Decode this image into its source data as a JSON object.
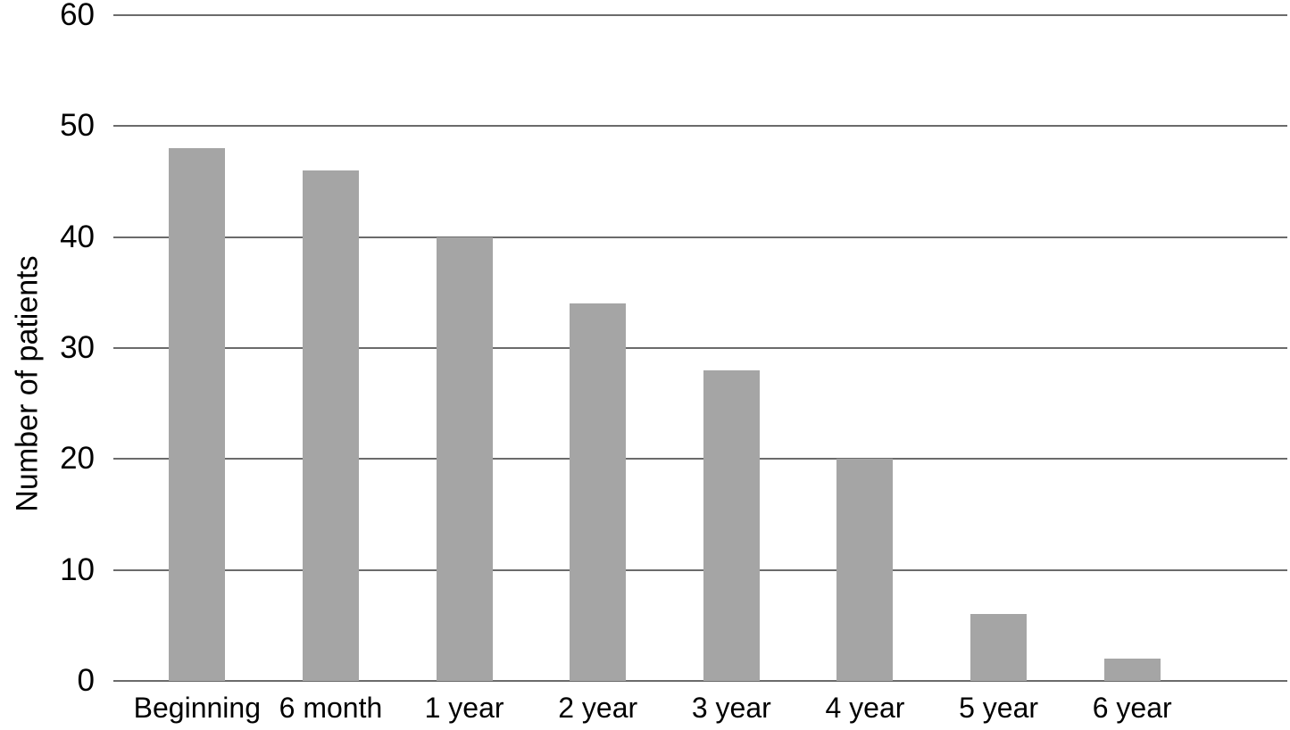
{
  "chart_data": {
    "type": "bar",
    "title": "",
    "xlabel": "",
    "ylabel": "Number of patients",
    "categories": [
      "Beginning",
      "6 month",
      "1 year",
      "2 year",
      "3 year",
      "4 year",
      "5 year",
      "6 year"
    ],
    "values": [
      48,
      46,
      40,
      34,
      28,
      20,
      6,
      2
    ],
    "ylim": [
      0,
      60
    ],
    "yticks": [
      0,
      10,
      20,
      30,
      40,
      50,
      60
    ],
    "grid": "horizontal",
    "legend": "none",
    "bar_color": "#a5a5a5",
    "gridline_color": "#6b6b6b",
    "text_color": "#000000",
    "background_color": "#ffffff"
  }
}
